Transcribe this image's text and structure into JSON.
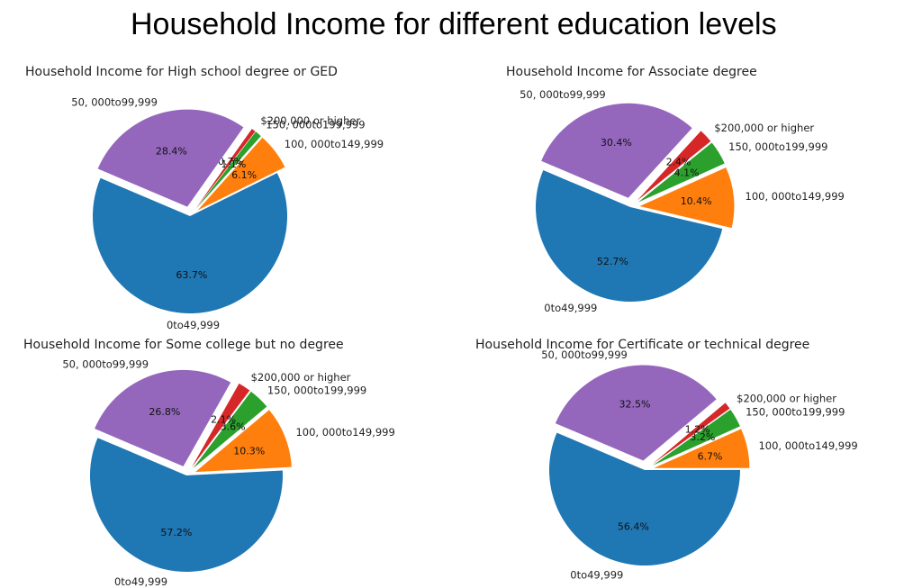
{
  "figure": {
    "title": "Household Income for different education levels"
  },
  "chart_data": [
    {
      "type": "pie",
      "title": "Household Income for High school degree or GED",
      "slices": [
        {
          "label": "0to49,999",
          "value": 63.7,
          "pct_label": "63.7%",
          "color": "#1f77b4",
          "explode": false
        },
        {
          "label": "100, 000to149,999",
          "value": 6.1,
          "pct_label": "6.1%",
          "color": "#ff7f0e",
          "explode": true
        },
        {
          "label": "150, 000to199,999",
          "value": 1.1,
          "pct_label": "1.1%",
          "color": "#2ca02c",
          "explode": true
        },
        {
          "label": "$200,000 or higher",
          "value": 0.7,
          "pct_label": "0.7%",
          "color": "#d62728",
          "explode": true
        },
        {
          "label": "50, 000to99,999",
          "value": 28.4,
          "pct_label": "28.4%",
          "color": "#9467bd",
          "explode": true
        }
      ]
    },
    {
      "type": "pie",
      "title": "Household Income for Associate degree",
      "slices": [
        {
          "label": "0to49,999",
          "value": 52.7,
          "pct_label": "52.7%",
          "color": "#1f77b4",
          "explode": false
        },
        {
          "label": "100, 000to149,999",
          "value": 10.4,
          "pct_label": "10.4%",
          "color": "#ff7f0e",
          "explode": true
        },
        {
          "label": "150, 000to199,999",
          "value": 4.1,
          "pct_label": "4.1%",
          "color": "#2ca02c",
          "explode": true
        },
        {
          "label": "$200,000 or higher",
          "value": 2.4,
          "pct_label": "2.4%",
          "color": "#d62728",
          "explode": true
        },
        {
          "label": "50, 000to99,999",
          "value": 30.4,
          "pct_label": "30.4%",
          "color": "#9467bd",
          "explode": true
        }
      ]
    },
    {
      "type": "pie",
      "title": "Household Income for Some college but no degree",
      "slices": [
        {
          "label": "0to49,999",
          "value": 57.2,
          "pct_label": "57.2%",
          "color": "#1f77b4",
          "explode": false
        },
        {
          "label": "100, 000to149,999",
          "value": 10.3,
          "pct_label": "10.3%",
          "color": "#ff7f0e",
          "explode": true
        },
        {
          "label": "150, 000to199,999",
          "value": 3.6,
          "pct_label": "3.6%",
          "color": "#2ca02c",
          "explode": true
        },
        {
          "label": "$200,000 or higher",
          "value": 2.1,
          "pct_label": "2.1%",
          "color": "#d62728",
          "explode": true
        },
        {
          "label": "50, 000to99,999",
          "value": 26.8,
          "pct_label": "26.8%",
          "color": "#9467bd",
          "explode": true
        }
      ]
    },
    {
      "type": "pie",
      "title": "Household Income for Certificate or technical degree",
      "slices": [
        {
          "label": "0to49,999",
          "value": 56.4,
          "pct_label": "56.4%",
          "color": "#1f77b4",
          "explode": false
        },
        {
          "label": "100, 000to149,999",
          "value": 6.7,
          "pct_label": "6.7%",
          "color": "#ff7f0e",
          "explode": true
        },
        {
          "label": "150, 000to199,999",
          "value": 3.2,
          "pct_label": "3.2%",
          "color": "#2ca02c",
          "explode": true
        },
        {
          "label": "$200,000 or higher",
          "value": 1.2,
          "pct_label": "1.2%",
          "color": "#d62728",
          "explode": true
        },
        {
          "label": "50, 000to99,999",
          "value": 32.5,
          "pct_label": "32.5%",
          "color": "#9467bd",
          "explode": true
        }
      ]
    }
  ]
}
